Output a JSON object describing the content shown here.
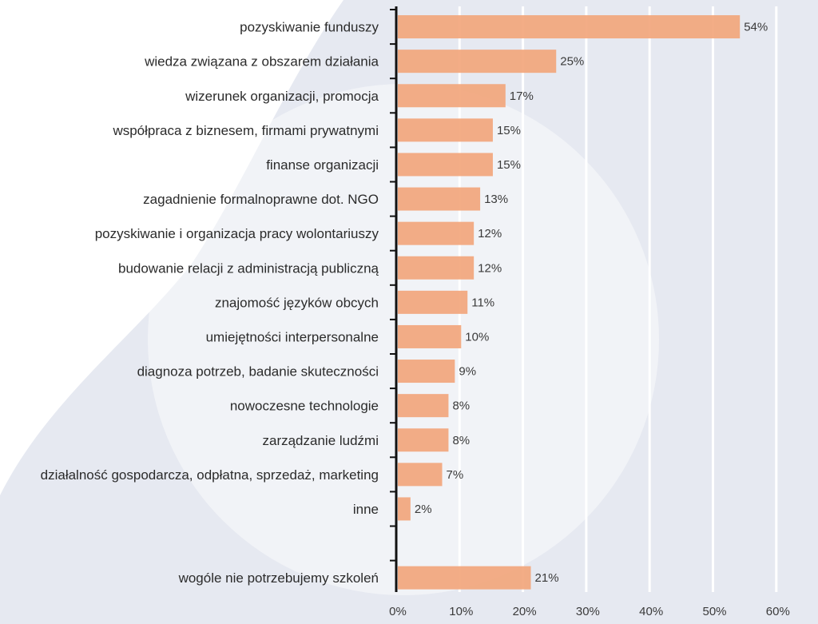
{
  "colors": {
    "bar": "#f2a67c",
    "background_shape": "#e6e9f1",
    "axis": "#111111",
    "gridline": "#ffffff"
  },
  "chart_data": {
    "type": "bar",
    "orientation": "horizontal",
    "categories": [
      "pozyskiwanie funduszy",
      "wiedza związana z obszarem działania",
      "wizerunek organizacji, promocja",
      "współpraca z biznesem, firmami prywatnymi",
      "finanse organizacji",
      "zagadnienie formalnoprawne dot. NGO",
      "pozyskiwanie i organizacja pracy wolontariuszy",
      "budowanie relacji z administracją publiczną",
      "znajomość języków obcych",
      "umiejętności interpersonalne",
      "diagnoza potrzeb, badanie skuteczności",
      "nowoczesne technologie",
      "zarządzanie ludźmi",
      "działalność gospodarcza, odpłatna, sprzedaż, marketing",
      "inne",
      "",
      "wogóle nie potrzebujemy szkoleń"
    ],
    "values": [
      54,
      25,
      17,
      15,
      15,
      13,
      12,
      12,
      11,
      10,
      9,
      8,
      8,
      7,
      2,
      null,
      21
    ],
    "value_labels": [
      "54%",
      "25%",
      "17%",
      "15%",
      "15%",
      "13%",
      "12%",
      "12%",
      "11%",
      "10%",
      "9%",
      "8%",
      "8%",
      "7%",
      "2%",
      "",
      "21%"
    ],
    "xlim": [
      0,
      60
    ],
    "xticks": [
      0,
      10,
      20,
      30,
      40,
      50,
      60
    ],
    "xtick_labels": [
      "0%",
      "10%",
      "20%",
      "30%",
      "40%",
      "50%",
      "60%"
    ],
    "grid": true,
    "title": "",
    "xlabel": "",
    "ylabel": ""
  }
}
